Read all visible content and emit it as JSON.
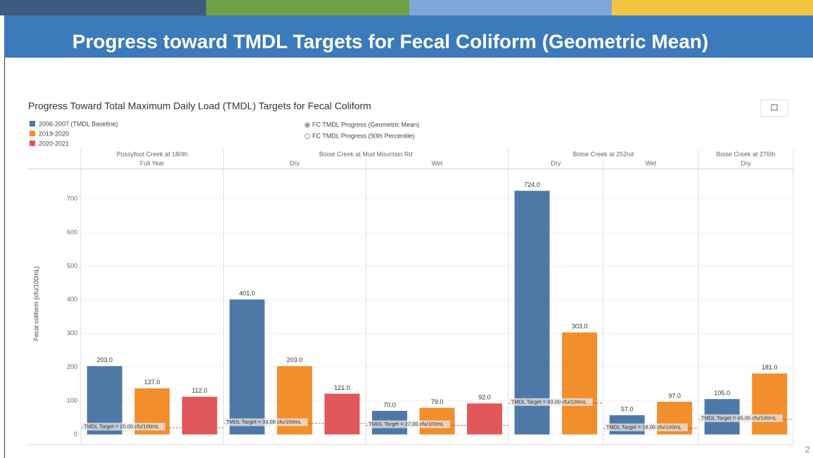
{
  "slide": {
    "title": "Progress toward TMDL Targets for Fecal Coliform (Geometric Mean)",
    "page_number": "2"
  },
  "chart_data": {
    "type": "bar",
    "title": "Progress Toward Total Maximum Daily Load (TMDL) Targets for Fecal Coliform",
    "options": [
      "FC TMDL Progress (Geometric Mean)",
      "FC TMDL Progress (90th Percentile)"
    ],
    "y_label": "Fecal coliform (cfu/100mL)",
    "ylim": [
      -20,
      790
    ],
    "yticks": [
      0,
      100,
      200,
      300,
      400,
      500,
      600,
      700
    ],
    "grid": true,
    "series": [
      {
        "name": "2006-2007 (TMDL Baseline)",
        "color": "#4e79a7"
      },
      {
        "name": "2019-2020",
        "color": "#f28e2b"
      },
      {
        "name": "2020-2021",
        "color": "#e15759"
      }
    ],
    "panels": [
      {
        "site": "Pussyfoot Creek at 180th",
        "subpanels": [
          {
            "season": "Full Year",
            "values": [
              203,
              137,
              112
            ],
            "value_labels": [
              "203.0",
              "137.0",
              "112.0"
            ],
            "target": 20,
            "target_label": "TMDL Target = 20.00 cfu/100mL"
          }
        ]
      },
      {
        "site": "Boise Creek at Mud Mountain Rd",
        "subpanels": [
          {
            "season": "Dry",
            "values": [
              401,
              203,
              121
            ],
            "value_labels": [
              "401.0",
              "203.0",
              "121.0"
            ],
            "target": 33,
            "target_label": "TMDL Target = 33.00 cfu/100mL"
          },
          {
            "season": "Wet",
            "values": [
              70,
              79,
              92
            ],
            "value_labels": [
              "70.0",
              "79.0",
              "92.0"
            ],
            "target": 27,
            "target_label": "TMDL Target = 27.00 cfu/100mL"
          }
        ]
      },
      {
        "site": "Boise Creek at 252nd",
        "subpanels": [
          {
            "season": "Dry",
            "values": [
              724,
              303
            ],
            "value_labels": [
              "724.0",
              "303.0"
            ],
            "target": 93,
            "target_label": "TMDL Target = 93.00 cfu/100mL"
          },
          {
            "season": "Wet",
            "values": [
              57,
              97
            ],
            "value_labels": [
              "57.0",
              "97.0"
            ],
            "target": 18,
            "target_label": "TMDL Target = 18.00 cfu/100mL"
          }
        ]
      },
      {
        "site": "Boise Creek at 276th",
        "subpanels": [
          {
            "season": "Dry",
            "values": [
              105,
              181
            ],
            "value_labels": [
              "105.0",
              "181.0"
            ],
            "target": 45,
            "target_label": "TMDL Target = 45.00 cfu/100mL"
          }
        ]
      }
    ]
  }
}
